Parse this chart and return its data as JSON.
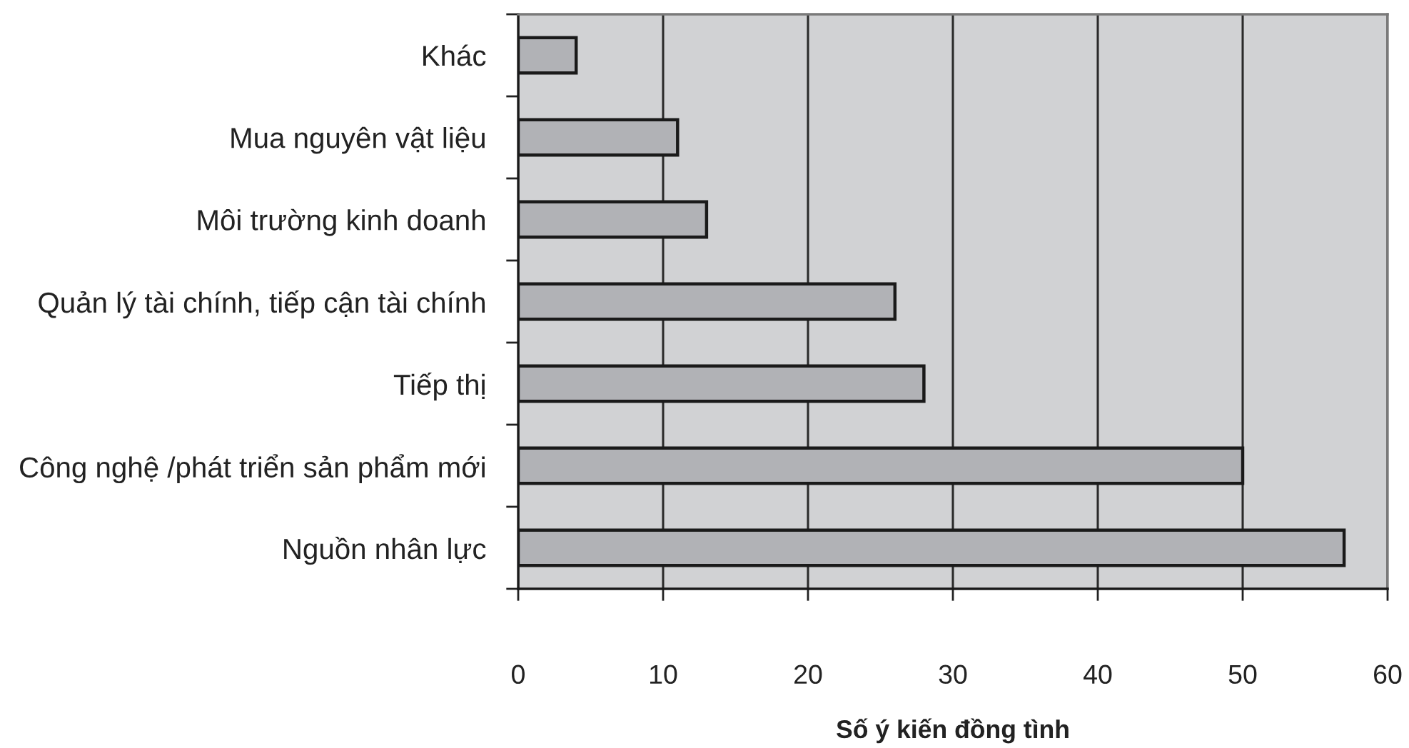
{
  "chart_data": {
    "type": "bar",
    "orientation": "horizontal",
    "categories": [
      "Khác",
      "Mua nguyên vật liệu",
      "Môi trường kinh doanh",
      "Quản lý tài chính, tiếp cận tài chính",
      "Tiếp thị",
      "Công nghệ /phát triển sản phẩm mới",
      "Nguồn nhân lực"
    ],
    "values": [
      4,
      11,
      13,
      26,
      28,
      50,
      57
    ],
    "color": "#b1b2b6",
    "xlabel": "Số ý kiến đồng tình",
    "xlim": [
      0,
      60
    ],
    "xticks": [
      0,
      10,
      20,
      30,
      40,
      50,
      60
    ],
    "grid": "x"
  }
}
